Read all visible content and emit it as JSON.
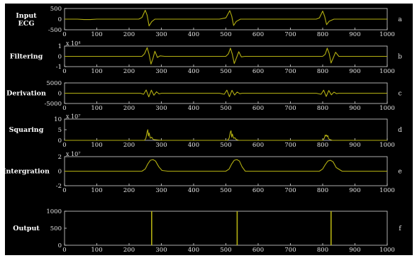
{
  "chart_data": [
    {
      "type": "line",
      "ylabel": "Input\nECG",
      "panel_tag": "a",
      "multiplier": "",
      "ylim": [
        -500,
        500
      ],
      "yticks": [
        -500,
        0,
        500
      ],
      "xlim": [
        0,
        1000
      ],
      "xticks": [
        "0",
        "100",
        "200",
        "300",
        "400",
        "500",
        "600",
        "700",
        "800",
        "900",
        "1000"
      ],
      "series": [
        {
          "x": [
            0,
            40,
            60,
            80,
            100,
            150,
            200,
            230,
            240,
            250,
            256,
            262,
            270,
            280,
            300,
            400,
            480,
            500,
            512,
            518,
            524,
            532,
            545,
            600,
            700,
            780,
            790,
            800,
            806,
            812,
            820,
            835,
            900,
            1000
          ],
          "y": [
            0,
            0,
            -20,
            -20,
            0,
            0,
            0,
            0,
            80,
            420,
            180,
            -320,
            -120,
            0,
            0,
            0,
            0,
            60,
            400,
            150,
            -300,
            -110,
            0,
            0,
            0,
            0,
            60,
            380,
            140,
            -260,
            -100,
            0,
            0,
            0
          ]
        }
      ]
    },
    {
      "type": "line",
      "ylabel": "Filtering",
      "panel_tag": "b",
      "multiplier": "x 10⁴",
      "ylim": [
        -1,
        1
      ],
      "yticks": [
        -1,
        0,
        1
      ],
      "xlim": [
        0,
        1000
      ],
      "xticks": [
        "0",
        "100",
        "200",
        "300",
        "400",
        "500",
        "600",
        "700",
        "800",
        "900",
        "1000"
      ],
      "series": [
        {
          "x": [
            0,
            200,
            240,
            248,
            256,
            262,
            268,
            274,
            280,
            288,
            296,
            310,
            480,
            500,
            508,
            514,
            520,
            526,
            532,
            540,
            548,
            560,
            780,
            800,
            808,
            814,
            820,
            826,
            832,
            840,
            850,
            1000
          ],
          "y": [
            0,
            0,
            0,
            0.25,
            0.85,
            0.2,
            -0.75,
            -0.2,
            0.5,
            -0.1,
            0.05,
            0,
            0,
            0,
            0.25,
            0.8,
            0.2,
            -0.7,
            -0.2,
            0.45,
            -0.05,
            0,
            0,
            0,
            0.2,
            0.8,
            0.3,
            -0.65,
            -0.2,
            0.4,
            0,
            0
          ]
        }
      ]
    },
    {
      "type": "line",
      "ylabel": "Derivation",
      "panel_tag": "c",
      "multiplier": "",
      "ylim": [
        -5000,
        5000
      ],
      "yticks": [
        -5000,
        0,
        5000
      ],
      "xlim": [
        0,
        1000
      ],
      "xticks": [
        "0",
        "100",
        "200",
        "300",
        "400",
        "500",
        "600",
        "700",
        "800",
        "900",
        "1000"
      ],
      "series": [
        {
          "x": [
            0,
            235,
            245,
            253,
            261,
            269,
            277,
            285,
            293,
            301,
            480,
            495,
            503,
            511,
            519,
            527,
            535,
            543,
            551,
            780,
            795,
            803,
            811,
            819,
            827,
            835,
            843,
            850,
            1000
          ],
          "y": [
            0,
            0,
            -500,
            1600,
            -1800,
            1500,
            -1000,
            700,
            -300,
            0,
            0,
            -500,
            1500,
            -1700,
            1400,
            -900,
            600,
            -250,
            0,
            0,
            -500,
            1500,
            -1600,
            1300,
            -800,
            500,
            -200,
            0,
            0
          ]
        }
      ]
    },
    {
      "type": "line",
      "ylabel": "Squaring",
      "panel_tag": "d",
      "multiplier": "x 10⁷",
      "ylim": [
        0,
        10
      ],
      "yticks": [
        0,
        5,
        10
      ],
      "xlim": [
        0,
        1000
      ],
      "xticks": [
        "0",
        "100",
        "200",
        "300",
        "400",
        "500",
        "600",
        "700",
        "800",
        "900",
        "1000"
      ],
      "series": [
        {
          "x": [
            0,
            248,
            252,
            256,
            258,
            260,
            262,
            266,
            270,
            274,
            280,
            300,
            505,
            510,
            514,
            516,
            518,
            520,
            524,
            528,
            532,
            540,
            800,
            805,
            808,
            810,
            812,
            814,
            816,
            818,
            822,
            830,
            1000
          ],
          "y": [
            0,
            0,
            1,
            4,
            5,
            2,
            3.5,
            1,
            1.5,
            0.5,
            0.3,
            0,
            0,
            1,
            4,
            4.5,
            1.5,
            3,
            1,
            1.2,
            0.4,
            0,
            0,
            1,
            2.5,
            2,
            2.5,
            1.8,
            2.2,
            0.8,
            0.4,
            0,
            0
          ]
        }
      ]
    },
    {
      "type": "line",
      "ylabel": "Intergration",
      "panel_tag": "e",
      "multiplier": "x 10⁷",
      "ylim": [
        -2,
        2
      ],
      "yticks": [
        -2,
        0,
        2
      ],
      "xlim": [
        0,
        1000
      ],
      "xticks": [
        "0",
        "100",
        "200",
        "300",
        "400",
        "500",
        "600",
        "700",
        "800",
        "900",
        "1000"
      ],
      "series": [
        {
          "x": [
            0,
            240,
            250,
            258,
            266,
            274,
            282,
            292,
            302,
            320,
            500,
            510,
            518,
            526,
            534,
            542,
            550,
            560,
            580,
            790,
            800,
            808,
            816,
            824,
            832,
            842,
            860,
            1000
          ],
          "y": [
            0,
            0,
            0.3,
            1.0,
            1.5,
            1.6,
            1.4,
            0.6,
            0.1,
            0,
            0,
            0.3,
            1.0,
            1.5,
            1.6,
            1.4,
            0.6,
            0,
            0,
            0,
            0.3,
            0.9,
            1.4,
            1.5,
            1.3,
            0.5,
            0,
            0
          ]
        }
      ]
    },
    {
      "type": "bar",
      "ylabel": "Output",
      "panel_tag": "f",
      "multiplier": "",
      "ylim": [
        0,
        1000
      ],
      "yticks": [
        0,
        500,
        1000
      ],
      "xlim": [
        0,
        1000
      ],
      "xticks": [
        "0",
        "100",
        "200",
        "300",
        "400",
        "500",
        "600",
        "700",
        "800",
        "900",
        "1000"
      ],
      "series": [
        {
          "x": [
            270,
            535,
            826
          ],
          "y": [
            1000,
            1000,
            1000
          ]
        }
      ]
    }
  ]
}
